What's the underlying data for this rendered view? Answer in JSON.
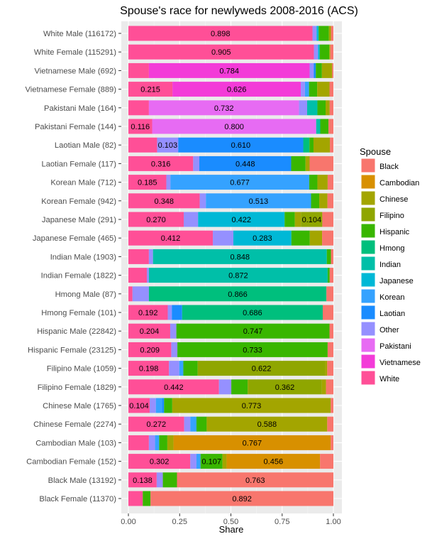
{
  "chart_data": {
    "type": "bar",
    "orientation": "horizontal-stacked",
    "title": "Spouse's race for newlyweds 2008-2016 (ACS)",
    "xlabel": "Share",
    "ylabel": "",
    "xlim": [
      0,
      1
    ],
    "xticks": [
      "0.00",
      "0.25",
      "0.50",
      "0.75",
      "1.00"
    ],
    "xtick_values": [
      0,
      0.25,
      0.5,
      0.75,
      1.0
    ],
    "legend_title": "Spouse",
    "legend_position": "right",
    "series": [
      {
        "name": "Black",
        "color": "#F8766D"
      },
      {
        "name": "Cambodian",
        "color": "#D89000"
      },
      {
        "name": "Chinese",
        "color": "#A3A500"
      },
      {
        "name": "Filipino",
        "color": "#8FA600"
      },
      {
        "name": "Hispanic",
        "color": "#39B600"
      },
      {
        "name": "Hmong",
        "color": "#00BF7D"
      },
      {
        "name": "Indian",
        "color": "#00BFA8"
      },
      {
        "name": "Japanese",
        "color": "#00B8D6"
      },
      {
        "name": "Korean",
        "color": "#35A2FF"
      },
      {
        "name": "Laotian",
        "color": "#1A8CFF"
      },
      {
        "name": "Other",
        "color": "#9590FF"
      },
      {
        "name": "Pakistani",
        "color": "#E76BF3"
      },
      {
        "name": "Vietnamese",
        "color": "#F33BD8"
      },
      {
        "name": "White",
        "color": "#FF4F97"
      }
    ],
    "rows": [
      {
        "label": "White Male (116172)",
        "segments": [
          [
            "White",
            0.898
          ],
          [
            "Other",
            0.02
          ],
          [
            "Japanese",
            0.01
          ],
          [
            "Hispanic",
            0.05
          ],
          [
            "Chinese",
            0.01
          ],
          [
            "Black",
            0.012
          ]
        ],
        "labels": [
          "0.898"
        ]
      },
      {
        "label": "White Female (115291)",
        "segments": [
          [
            "White",
            0.905
          ],
          [
            "Other",
            0.02
          ],
          [
            "Japanese",
            0.008
          ],
          [
            "Hispanic",
            0.047
          ],
          [
            "Chinese",
            0.005
          ],
          [
            "Black",
            0.015
          ]
        ],
        "labels": [
          "0.905"
        ]
      },
      {
        "label": "Vietnamese Male (692)",
        "segments": [
          [
            "White",
            0.1
          ],
          [
            "Vietnamese",
            0.784
          ],
          [
            "Other",
            0.02
          ],
          [
            "Laotian",
            0.01
          ],
          [
            "Hispanic",
            0.03
          ],
          [
            "Chinese",
            0.05
          ],
          [
            "Black",
            0.006
          ]
        ],
        "labels": [
          "0.784"
        ]
      },
      {
        "label": "Vietnamese Female (889)",
        "segments": [
          [
            "White",
            0.215
          ],
          [
            "Vietnamese",
            0.626
          ],
          [
            "Other",
            0.02
          ],
          [
            "Korean",
            0.02
          ],
          [
            "Hispanic",
            0.04
          ],
          [
            "Chinese",
            0.06
          ],
          [
            "Black",
            0.019
          ]
        ],
        "labels": [
          "0.215",
          "0.626"
        ]
      },
      {
        "label": "Pakistani Male (164)",
        "segments": [
          [
            "White",
            0.1
          ],
          [
            "Pakistani",
            0.732
          ],
          [
            "Other",
            0.04
          ],
          [
            "Indian",
            0.05
          ],
          [
            "Hispanic",
            0.04
          ],
          [
            "Chinese",
            0.02
          ],
          [
            "Black",
            0.018
          ]
        ],
        "labels": [
          "0.732"
        ]
      },
      {
        "label": "Pakistani Female (144)",
        "segments": [
          [
            "White",
            0.116
          ],
          [
            "Pakistani",
            0.8
          ],
          [
            "Indian",
            0.02
          ],
          [
            "Hispanic",
            0.04
          ],
          [
            "Black",
            0.024
          ]
        ],
        "labels": [
          "0.116",
          "0.800"
        ]
      },
      {
        "label": "Laotian Male (82)",
        "segments": [
          [
            "White",
            0.14
          ],
          [
            "Other",
            0.103
          ],
          [
            "Laotian",
            0.61
          ],
          [
            "Hmong",
            0.03
          ],
          [
            "Hispanic",
            0.02
          ],
          [
            "Chinese",
            0.08
          ],
          [
            "Black",
            0.017
          ]
        ],
        "labels": [
          "0.103",
          "0.610"
        ]
      },
      {
        "label": "Laotian Female (117)",
        "segments": [
          [
            "White",
            0.316
          ],
          [
            "Other",
            0.03
          ],
          [
            "Laotian",
            0.448
          ],
          [
            "Hispanic",
            0.07
          ],
          [
            "Chinese",
            0.02
          ],
          [
            "Black",
            0.116
          ]
        ],
        "labels": [
          "0.316",
          "0.448"
        ]
      },
      {
        "label": "Korean Male (712)",
        "segments": [
          [
            "White",
            0.185
          ],
          [
            "Other",
            0.02
          ],
          [
            "Korean",
            0.677
          ],
          [
            "Hispanic",
            0.04
          ],
          [
            "Chinese",
            0.05
          ],
          [
            "Black",
            0.028
          ]
        ],
        "labels": [
          "0.185",
          "0.677"
        ]
      },
      {
        "label": "Korean Female (942)",
        "segments": [
          [
            "White",
            0.348
          ],
          [
            "Other",
            0.03
          ],
          [
            "Korean",
            0.513
          ],
          [
            "Hispanic",
            0.04
          ],
          [
            "Chinese",
            0.04
          ],
          [
            "Black",
            0.029
          ]
        ],
        "labels": [
          "0.348",
          "0.513"
        ]
      },
      {
        "label": "Japanese Male (291)",
        "segments": [
          [
            "White",
            0.27
          ],
          [
            "Other",
            0.07
          ],
          [
            "Japanese",
            0.422
          ],
          [
            "Hispanic",
            0.05
          ],
          [
            "Chinese",
            0.03
          ],
          [
            "Filipino",
            0.104
          ],
          [
            "Black",
            0.054
          ]
        ],
        "labels": [
          "0.270",
          "0.422",
          "0.104"
        ]
      },
      {
        "label": "Japanese Female (465)",
        "segments": [
          [
            "White",
            0.412
          ],
          [
            "Other",
            0.1
          ],
          [
            "Japanese",
            0.283
          ],
          [
            "Hispanic",
            0.09
          ],
          [
            "Chinese",
            0.06
          ],
          [
            "Black",
            0.055
          ]
        ],
        "labels": [
          "0.412",
          "0.283"
        ]
      },
      {
        "label": "Indian Male (1903)",
        "segments": [
          [
            "White",
            0.1
          ],
          [
            "Other",
            0.02
          ],
          [
            "Indian",
            0.848
          ],
          [
            "Hispanic",
            0.02
          ],
          [
            "Black",
            0.012
          ]
        ],
        "labels": [
          "0.848"
        ]
      },
      {
        "label": "Indian Female (1822)",
        "segments": [
          [
            "White",
            0.09
          ],
          [
            "Other",
            0.01
          ],
          [
            "Indian",
            0.872
          ],
          [
            "Hispanic",
            0.01
          ],
          [
            "Black",
            0.018
          ]
        ],
        "labels": [
          "0.872"
        ]
      },
      {
        "label": "Hmong Male (87)",
        "segments": [
          [
            "White",
            0.02
          ],
          [
            "Other",
            0.08
          ],
          [
            "Hmong",
            0.866
          ],
          [
            "Black",
            0.034
          ]
        ],
        "labels": [
          "0.866"
        ]
      },
      {
        "label": "Hmong Female (101)",
        "segments": [
          [
            "White",
            0.192
          ],
          [
            "Other",
            0.02
          ],
          [
            "Laotian",
            0.05
          ],
          [
            "Hmong",
            0.686
          ],
          [
            "Black",
            0.052
          ]
        ],
        "labels": [
          "0.192",
          "0.686"
        ]
      },
      {
        "label": "Hispanic Male (22842)",
        "segments": [
          [
            "White",
            0.204
          ],
          [
            "Other",
            0.03
          ],
          [
            "Hispanic",
            0.747
          ],
          [
            "Black",
            0.019
          ]
        ],
        "labels": [
          "0.204",
          "0.747"
        ]
      },
      {
        "label": "Hispanic Female (23125)",
        "segments": [
          [
            "White",
            0.209
          ],
          [
            "Other",
            0.03
          ],
          [
            "Hispanic",
            0.733
          ],
          [
            "Black",
            0.028
          ]
        ],
        "labels": [
          "0.209",
          "0.733"
        ]
      },
      {
        "label": "Filipino Male (1059)",
        "segments": [
          [
            "White",
            0.198
          ],
          [
            "Other",
            0.05
          ],
          [
            "Korean",
            0.02
          ],
          [
            "Hispanic",
            0.07
          ],
          [
            "Filipino",
            0.622
          ],
          [
            "Chinese",
            0.01
          ],
          [
            "Black",
            0.03
          ]
        ],
        "labels": [
          "0.198",
          "0.622"
        ]
      },
      {
        "label": "Filipino Female (1829)",
        "segments": [
          [
            "White",
            0.442
          ],
          [
            "Other",
            0.06
          ],
          [
            "Hispanic",
            0.08
          ],
          [
            "Filipino",
            0.362
          ],
          [
            "Chinese",
            0.02
          ],
          [
            "Black",
            0.036
          ]
        ],
        "labels": [
          "0.442",
          "0.362"
        ]
      },
      {
        "label": "Chinese Male (1765)",
        "segments": [
          [
            "White",
            0.104
          ],
          [
            "Other",
            0.03
          ],
          [
            "Korean",
            0.03
          ],
          [
            "Laotian",
            0.01
          ],
          [
            "Hispanic",
            0.04
          ],
          [
            "Chinese",
            0.773
          ],
          [
            "Black",
            0.013
          ]
        ],
        "labels": [
          "0.104",
          "0.773"
        ]
      },
      {
        "label": "Chinese Female (2274)",
        "segments": [
          [
            "White",
            0.272
          ],
          [
            "Other",
            0.03
          ],
          [
            "Korean",
            0.03
          ],
          [
            "Hispanic",
            0.05
          ],
          [
            "Chinese",
            0.588
          ],
          [
            "Black",
            0.03
          ]
        ],
        "labels": [
          "0.272",
          "0.588"
        ]
      },
      {
        "label": "Cambodian Male (103)",
        "segments": [
          [
            "White",
            0.1
          ],
          [
            "Other",
            0.03
          ],
          [
            "Korean",
            0.02
          ],
          [
            "Hispanic",
            0.04
          ],
          [
            "Chinese",
            0.03
          ],
          [
            "Cambodian",
            0.767
          ],
          [
            "Black",
            0.013
          ]
        ],
        "labels": [
          "0.767"
        ]
      },
      {
        "label": "Cambodian Female (152)",
        "segments": [
          [
            "White",
            0.302
          ],
          [
            "Other",
            0.03
          ],
          [
            "Korean",
            0.02
          ],
          [
            "Hispanic",
            0.107
          ],
          [
            "Chinese",
            0.02
          ],
          [
            "Cambodian",
            0.456
          ],
          [
            "Black",
            0.065
          ]
        ],
        "labels": [
          "0.302",
          "0.107",
          "0.456"
        ]
      },
      {
        "label": "Black Male (13192)",
        "segments": [
          [
            "White",
            0.138
          ],
          [
            "Other",
            0.03
          ],
          [
            "Hispanic",
            0.069
          ],
          [
            "Black",
            0.763
          ]
        ],
        "labels": [
          "0.138",
          "0.763"
        ]
      },
      {
        "label": "Black Female (11370)",
        "segments": [
          [
            "White",
            0.07
          ],
          [
            "Hispanic",
            0.038
          ],
          [
            "Black",
            0.892
          ]
        ],
        "labels": [
          "0.892"
        ]
      }
    ]
  }
}
